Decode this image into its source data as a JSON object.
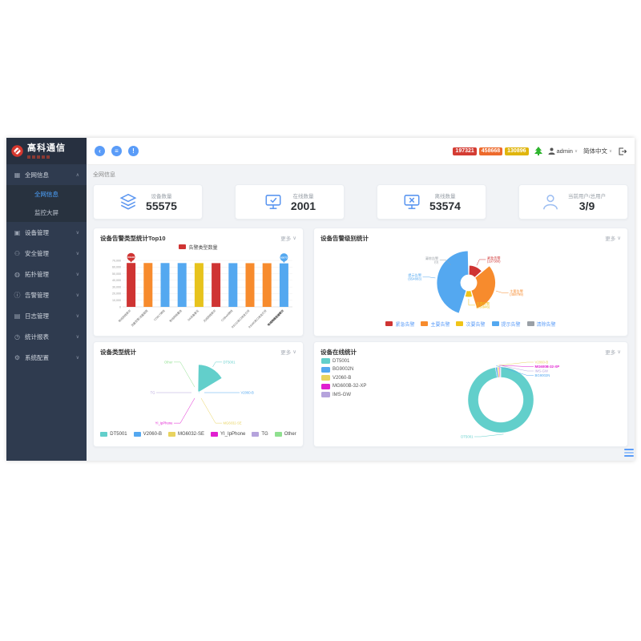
{
  "icons": {
    "chevron_down": "∨",
    "chevron_up": "∧",
    "back": "‹",
    "menu": "≡",
    "alert": "!"
  },
  "header": {
    "logo_title": "高科通信",
    "nav_icons": [
      {
        "name": "back-button",
        "glyph": "‹"
      },
      {
        "name": "menu-button",
        "glyph": "≡"
      },
      {
        "name": "alert-button",
        "glyph": "!"
      }
    ],
    "badges": [
      {
        "label": "197321",
        "color": "#d43c33"
      },
      {
        "label": "458668",
        "color": "#ed6a2c"
      },
      {
        "label": "130896",
        "color": "#e0b50c"
      }
    ],
    "username": "admin",
    "language": "简体中文"
  },
  "sidebar": {
    "items": [
      {
        "label": "全网信息",
        "icon": "grid-icon",
        "glyph": "▦",
        "expanded": true,
        "children": [
          {
            "label": "全网信息",
            "active": true
          },
          {
            "label": "监控大屏",
            "active": false
          }
        ]
      },
      {
        "label": "设备管理",
        "icon": "device-icon",
        "glyph": "▣"
      },
      {
        "label": "安全管理",
        "icon": "shield-user-icon",
        "glyph": "⚇"
      },
      {
        "label": "拓扑管理",
        "icon": "globe-icon",
        "glyph": "◍"
      },
      {
        "label": "告警管理",
        "icon": "info-icon",
        "glyph": "ⓘ"
      },
      {
        "label": "日志管理",
        "icon": "log-icon",
        "glyph": "▤"
      },
      {
        "label": "统计报表",
        "icon": "clock-icon",
        "glyph": "◷"
      },
      {
        "label": "系统配置",
        "icon": "gear-icon",
        "glyph": "⚙"
      }
    ]
  },
  "breadcrumb": "全网信息",
  "stat_cards": [
    {
      "label": "设备数量",
      "value": "55575",
      "icon": "layers-icon"
    },
    {
      "label": "在线数量",
      "value": "2001",
      "icon": "monitor-check-icon"
    },
    {
      "label": "离线数量",
      "value": "53574",
      "icon": "monitor-x-icon"
    },
    {
      "label": "当前用户/总用户",
      "value": "3/9",
      "icon": "user-icon"
    }
  ],
  "panels": {
    "more_label": "更多"
  },
  "chart_data": [
    {
      "id": "alarm-type-bar",
      "type": "bar",
      "title": "设备告警类型统计Top10",
      "legend": [
        "告警类型数量"
      ],
      "legend_color": "#cf3433",
      "categories": [
        "有线网络断开",
        "流量告警/流量超限",
        "COBLT掉线",
        "有线网络重连",
        "SA设备复位",
        "无线网络断开",
        "COBwifi掉线",
        "RS232串口改变打开",
        "RS485串口改变打开",
        "有线网络连接断开"
      ],
      "values": [
        66138,
        66085,
        66040,
        66000,
        65960,
        65930,
        65890,
        65850,
        65790,
        65573
      ],
      "bar_colors": [
        "#cf3433",
        "#f78b2d",
        "#54a8f0",
        "#54a8f0",
        "#e7c31c",
        "#cf3433",
        "#54a8f0",
        "#f78b2d",
        "#f78b2d",
        "#54a8f0"
      ],
      "ylim": [
        0,
        70000
      ],
      "ytick_step": 10000,
      "emphasis_index": 9,
      "markers": [
        {
          "index": 0,
          "value": 66138,
          "color": "#cf3433"
        },
        {
          "index": 9,
          "value": 65573,
          "color": "#54a8f0"
        }
      ]
    },
    {
      "id": "alarm-level-rose",
      "type": "pie",
      "variant": "rose",
      "title": "设备告警级别统计",
      "legend_text_color": "#5a9cf8",
      "slices": [
        {
          "name": "紧急告警",
          "value": 197380,
          "color": "#cf3433"
        },
        {
          "name": "主要告警",
          "value": 458799,
          "color": "#f78b2d"
        },
        {
          "name": "次要告警",
          "value": 130946,
          "color": "#f0c417"
        },
        {
          "name": "提示告警",
          "value": 654883,
          "color": "#54a8f0"
        },
        {
          "name": "清除告警",
          "value": 0,
          "color": "#9aa0a6",
          "label_angle_deg": 315
        }
      ]
    },
    {
      "id": "device-type-rose",
      "type": "pie",
      "variant": "rose-equal-angle",
      "title": "设备类型统计",
      "note": "values estimated from wedge sizes; only DT5001 wedge visible",
      "slices": [
        {
          "name": "DT5001",
          "value": 55000,
          "color": "#62cfcb"
        },
        {
          "name": "V2060-B",
          "value": 260,
          "color": "#54a8f0"
        },
        {
          "name": "MG6032-SE",
          "value": 120,
          "color": "#e8d35f"
        },
        {
          "name": "YI_IpPhone",
          "value": 60,
          "color": "#e01fd0"
        },
        {
          "name": "TG",
          "value": 30,
          "color": "#b5a3dc"
        },
        {
          "name": "Other",
          "value": 15,
          "color": "#8fe08f"
        }
      ]
    },
    {
      "id": "device-online-donut",
      "type": "pie",
      "variant": "donut",
      "title": "设备在线统计",
      "note": "percent values estimated from ring proportions",
      "slices": [
        {
          "name": "DT5001",
          "value": 97.4,
          "color": "#62cfcb"
        },
        {
          "name": "BG9002N",
          "value": 0.9,
          "color": "#54a8f0"
        },
        {
          "name": "V2060-B",
          "value": 0.8,
          "color": "#e8d35f"
        },
        {
          "name": "MG600B-32-XP",
          "value": 0.5,
          "color": "#e01fd0"
        },
        {
          "name": "IMS-GW",
          "value": 0.4,
          "color": "#b5a3dc"
        }
      ],
      "right_label_order": [
        "V2060-B",
        "MG600B-32-XP",
        "IMS-GW",
        "BG9002N"
      ],
      "bottom_label": "DT5001"
    }
  ]
}
